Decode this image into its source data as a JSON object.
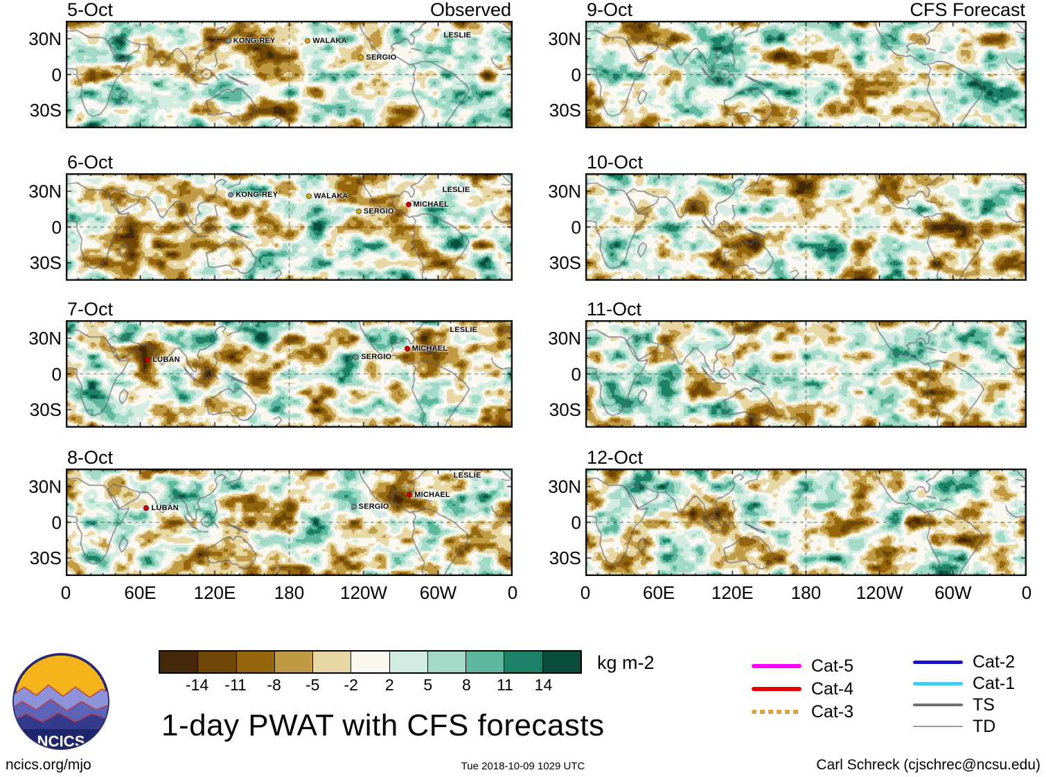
{
  "figure": {
    "title": "1-day PWAT with CFS forecasts",
    "footer_left": "ncics.org/mjo",
    "footer_center": "Tue 2018-10-09 1029 UTC",
    "footer_right": "Carl Schreck (cjschrec@ncsu.edu)",
    "logo_text": "NCICS"
  },
  "chart_data": {
    "type": "heatmap",
    "title": "1-day PWAT with CFS forecasts",
    "units": "kg m-2",
    "description": "Global tropics daily precipitable-water (PWAT) anomaly maps. Left column: observed 5-8 Oct with labeled tropical cyclones. Right column: CFS forecast 9-12 Oct.",
    "column_headings": {
      "left": "Observed",
      "right": "CFS Forecast"
    },
    "x_axis": {
      "ticks": [
        "0",
        "60E",
        "120E",
        "180",
        "120W",
        "60W",
        "0"
      ],
      "lon_range_deg": [
        0,
        360
      ]
    },
    "y_axis": {
      "ticks": [
        "30N",
        "0",
        "30S"
      ],
      "lat_range_deg": [
        45,
        -45
      ]
    },
    "colorbar": {
      "levels": [
        -14,
        -11,
        -8,
        -5,
        -2,
        2,
        5,
        8,
        11,
        14
      ],
      "colors": [
        "#45290a",
        "#6f4808",
        "#96660e",
        "#c09a44",
        "#e6d7a4",
        "#faf8f0",
        "#d3ece1",
        "#a2d9c7",
        "#5db79e",
        "#1d8168",
        "#0b4d3d"
      ],
      "units_label": "kg m-2"
    },
    "panels": [
      {
        "date": "5-Oct",
        "column": "observed",
        "corner_label": "Observed",
        "storms": [
          {
            "name": "KONG-REY",
            "lon": 131,
            "lat": 28,
            "marker_color": "#7f8fa0"
          },
          {
            "name": "WALAKA",
            "lon": 195,
            "lat": 28,
            "marker_color": "#d9a420"
          },
          {
            "name": "SERGIO",
            "lon": 238,
            "lat": 14,
            "marker_color": "#d9a420"
          },
          {
            "name": "LESLIE",
            "lon": 305,
            "lat": 33,
            "marker_color": null
          }
        ]
      },
      {
        "date": "6-Oct",
        "column": "observed",
        "corner_label": "",
        "storms": [
          {
            "name": "KONG-REY",
            "lon": 133,
            "lat": 27,
            "marker_color": "#7f8fa0"
          },
          {
            "name": "WALAKA",
            "lon": 196,
            "lat": 26,
            "marker_color": "#d9a420"
          },
          {
            "name": "SERGIO",
            "lon": 236,
            "lat": 13,
            "marker_color": "#d9a420"
          },
          {
            "name": "MICHAEL",
            "lon": 276,
            "lat": 19,
            "marker_color": "#d40000"
          },
          {
            "name": "LESLIE",
            "lon": 304,
            "lat": 31,
            "marker_color": null
          }
        ]
      },
      {
        "date": "7-Oct",
        "column": "observed",
        "corner_label": "",
        "storms": [
          {
            "name": "LUBAN",
            "lon": 66,
            "lat": 12,
            "marker_color": "#d40000"
          },
          {
            "name": "SERGIO",
            "lon": 234,
            "lat": 14,
            "marker_color": "#7f8fa0"
          },
          {
            "name": "MICHAEL",
            "lon": 275,
            "lat": 21,
            "marker_color": "#d40000"
          },
          {
            "name": "LESLIE",
            "lon": 310,
            "lat": 37,
            "marker_color": null
          }
        ]
      },
      {
        "date": "8-Oct",
        "column": "observed",
        "corner_label": "",
        "storms": [
          {
            "name": "LUBAN",
            "lon": 65,
            "lat": 12,
            "marker_color": "#d40000"
          },
          {
            "name": "SERGIO",
            "lon": 232,
            "lat": 13,
            "marker_color": "#7f8fa0"
          },
          {
            "name": "MICHAEL",
            "lon": 277,
            "lat": 23,
            "marker_color": "#d40000"
          },
          {
            "name": "LESLIE",
            "lon": 313,
            "lat": 39,
            "marker_color": null
          }
        ]
      },
      {
        "date": "9-Oct",
        "column": "forecast",
        "corner_label": "CFS Forecast",
        "storms": []
      },
      {
        "date": "10-Oct",
        "column": "forecast",
        "corner_label": "",
        "storms": []
      },
      {
        "date": "11-Oct",
        "column": "forecast",
        "corner_label": "",
        "storms": []
      },
      {
        "date": "12-Oct",
        "column": "forecast",
        "corner_label": "",
        "storms": []
      }
    ],
    "legend": {
      "columns": [
        {
          "items": [
            {
              "label": "Cat-5",
              "color": "#ff00ff",
              "weight": 6,
              "dotted": false
            },
            {
              "label": "Cat-4",
              "color": "#e80000",
              "weight": 6,
              "dotted": false
            },
            {
              "label": "Cat-3",
              "color": "#e2a12f",
              "weight": 6,
              "dotted": true
            }
          ]
        },
        {
          "items": [
            {
              "label": "Cat-2",
              "color": "#1515d0",
              "weight": 5,
              "dotted": false
            },
            {
              "label": "Cat-1",
              "color": "#49c9ee",
              "weight": 5,
              "dotted": false
            },
            {
              "label": "TS",
              "color": "#6f6f6f",
              "weight": 4,
              "dotted": false
            },
            {
              "label": "TD",
              "color": "#9b9b9b",
              "weight": 1.5,
              "dotted": false
            }
          ]
        }
      ]
    }
  }
}
